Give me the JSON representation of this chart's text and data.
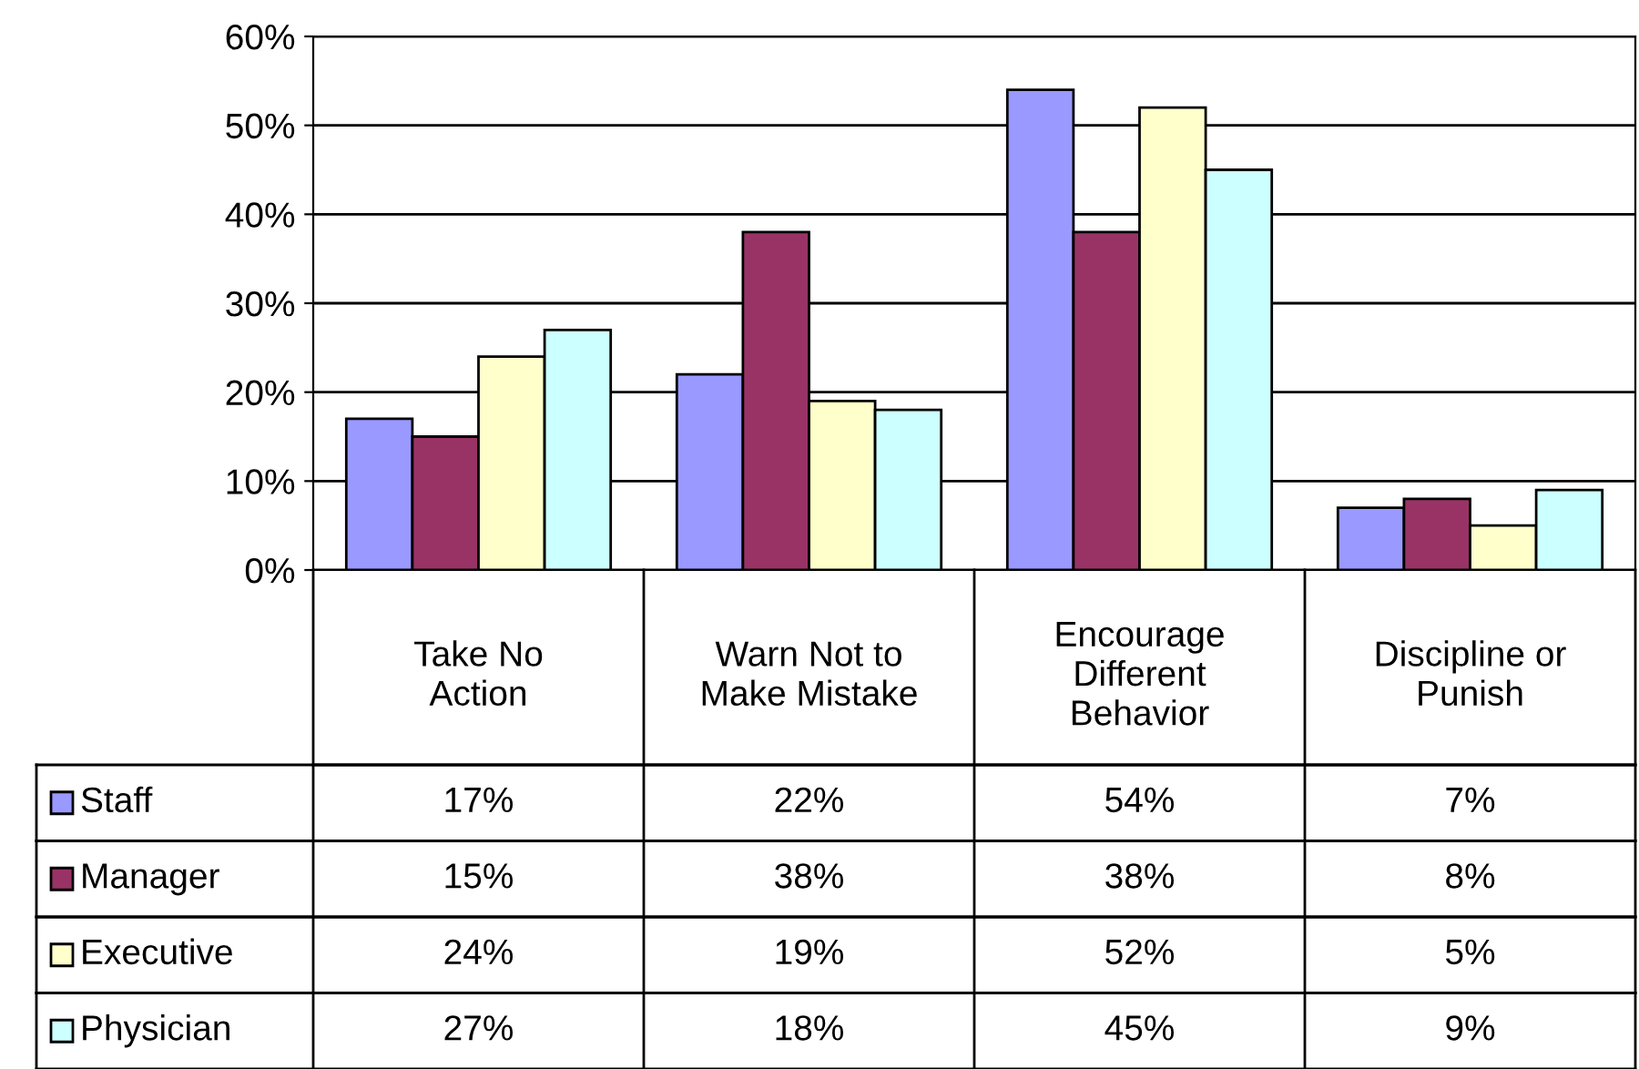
{
  "chart_data": {
    "type": "bar",
    "categories": [
      "Take No Action",
      "Warn Not to Make Mistake",
      "Encourage Different Behavior",
      "Discipline or Punish"
    ],
    "series": [
      {
        "name": "Staff",
        "color": "#9999ff",
        "values": [
          17,
          22,
          54,
          7
        ],
        "value_labels": [
          "17%",
          "22%",
          "54%",
          "7%"
        ]
      },
      {
        "name": "Manager",
        "color": "#993366",
        "values": [
          15,
          38,
          38,
          8
        ],
        "value_labels": [
          "15%",
          "38%",
          "38%",
          "8%"
        ]
      },
      {
        "name": "Executive",
        "color": "#ffffcc",
        "values": [
          24,
          19,
          52,
          5
        ],
        "value_labels": [
          "24%",
          "19%",
          "52%",
          "5%"
        ]
      },
      {
        "name": "Physician",
        "color": "#ccffff",
        "values": [
          27,
          18,
          45,
          9
        ],
        "value_labels": [
          "27%",
          "18%",
          "45%",
          "9%"
        ]
      }
    ],
    "ylim": [
      0,
      60
    ],
    "yticks": [
      {
        "value": 0,
        "label": "0%"
      },
      {
        "value": 10,
        "label": "10%"
      },
      {
        "value": 20,
        "label": "20%"
      },
      {
        "value": 30,
        "label": "30%"
      },
      {
        "value": 40,
        "label": "40%"
      },
      {
        "value": 50,
        "label": "50%"
      },
      {
        "value": 60,
        "label": "60%"
      }
    ],
    "grid": "y",
    "legend": "bottom left"
  }
}
